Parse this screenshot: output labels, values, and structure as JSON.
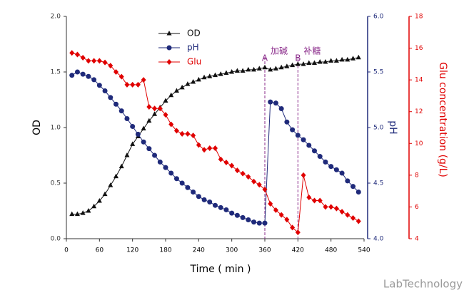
{
  "chart_data": {
    "type": "line",
    "xlabel": "Time ( min )",
    "ylabel": "OD",
    "y2label": "pH",
    "y3label": "Glu concentration (g/L)",
    "xlim": [
      0,
      540
    ],
    "xticks": [
      0,
      60,
      120,
      180,
      240,
      300,
      360,
      420,
      480,
      540
    ],
    "ylim": [
      0,
      2
    ],
    "yticks": [
      {
        "value": 0,
        "label": "0.0"
      },
      {
        "value": 0.5,
        "label": "0.5"
      },
      {
        "value": 1,
        "label": "1.0"
      },
      {
        "value": 1.5,
        "label": "1.5"
      },
      {
        "value": 2,
        "label": "2.0"
      }
    ],
    "y2lim": [
      4,
      6
    ],
    "y2ticks": [
      {
        "value": 4,
        "label": "4.0"
      },
      {
        "value": 4.5,
        "label": "4.5"
      },
      {
        "value": 5,
        "label": "5.0"
      },
      {
        "value": 5.5,
        "label": "5.5"
      },
      {
        "value": 6,
        "label": "6.0"
      }
    ],
    "y3lim": [
      4,
      18
    ],
    "y3ticks": [
      4,
      6,
      8,
      10,
      12,
      14,
      16,
      18
    ],
    "x": [
      10,
      20,
      30,
      40,
      50,
      60,
      70,
      80,
      90,
      100,
      110,
      120,
      130,
      140,
      150,
      160,
      170,
      180,
      190,
      200,
      210,
      220,
      230,
      240,
      250,
      260,
      270,
      280,
      290,
      300,
      310,
      320,
      330,
      340,
      350,
      360,
      370,
      380,
      390,
      400,
      410,
      420,
      430,
      440,
      450,
      460,
      470,
      480,
      490,
      500,
      510,
      520,
      530
    ],
    "series": [
      {
        "name": "OD",
        "color": "#111111",
        "marker": "triangle",
        "axis": "y",
        "values": [
          0.22,
          0.22,
          0.23,
          0.25,
          0.29,
          0.34,
          0.4,
          0.48,
          0.56,
          0.65,
          0.75,
          0.85,
          0.92,
          0.99,
          1.06,
          1.12,
          1.18,
          1.24,
          1.29,
          1.33,
          1.36,
          1.39,
          1.41,
          1.43,
          1.45,
          1.46,
          1.47,
          1.48,
          1.49,
          1.5,
          1.51,
          1.51,
          1.52,
          1.52,
          1.53,
          1.54,
          1.52,
          1.53,
          1.54,
          1.55,
          1.56,
          1.57,
          1.57,
          1.58,
          1.58,
          1.59,
          1.59,
          1.6,
          1.6,
          1.61,
          1.61,
          1.62,
          1.63
        ]
      },
      {
        "name": "pH",
        "color": "#1f2a7a",
        "marker": "circle",
        "axis": "y2",
        "values": [
          5.47,
          5.5,
          5.48,
          5.46,
          5.43,
          5.38,
          5.33,
          5.27,
          5.21,
          5.15,
          5.08,
          5.01,
          4.94,
          4.87,
          4.81,
          4.75,
          4.69,
          4.64,
          4.59,
          4.54,
          4.5,
          4.46,
          4.42,
          4.38,
          4.35,
          4.33,
          4.3,
          4.28,
          4.26,
          4.23,
          4.21,
          4.19,
          4.17,
          4.15,
          4.14,
          4.14,
          5.23,
          5.22,
          5.17,
          5.05,
          4.98,
          4.93,
          4.89,
          4.84,
          4.79,
          4.74,
          4.69,
          4.65,
          4.62,
          4.59,
          4.52,
          4.47,
          4.42
        ]
      },
      {
        "name": "Glu",
        "color": "#e00000",
        "marker": "diamond",
        "axis": "y3",
        "values": [
          15.7,
          15.6,
          15.4,
          15.2,
          15.2,
          15.2,
          15.1,
          14.9,
          14.5,
          14.2,
          13.7,
          13.7,
          13.7,
          14.0,
          12.3,
          12.2,
          12.2,
          11.8,
          11.2,
          10.8,
          10.6,
          10.6,
          10.5,
          9.9,
          9.6,
          9.7,
          9.7,
          9.0,
          8.8,
          8.6,
          8.3,
          8.1,
          7.9,
          7.6,
          7.4,
          7.1,
          6.2,
          5.8,
          5.5,
          5.2,
          4.7,
          4.4,
          8.0,
          6.6,
          6.4,
          6.4,
          6.0,
          6.0,
          5.9,
          5.7,
          5.5,
          5.3,
          5.1
        ]
      }
    ],
    "annotations": [
      {
        "label": "A",
        "text": "加碱",
        "x": 360
      },
      {
        "label": "B",
        "text": "补糖",
        "x": 420
      }
    ],
    "watermark": "LabTechnology"
  }
}
